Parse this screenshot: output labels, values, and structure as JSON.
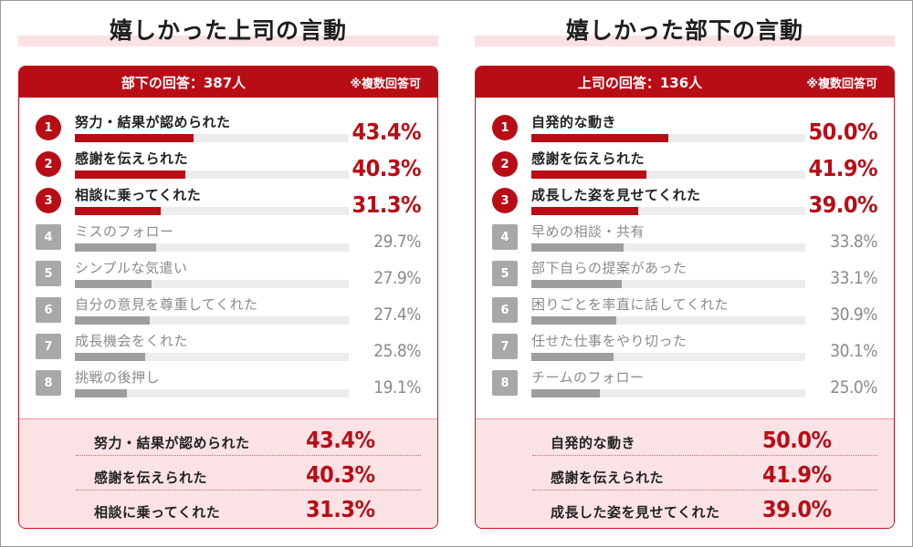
{
  "chart_data": [
    {
      "type": "bar",
      "orientation": "horizontal",
      "title": "嬉しかった上司の言動",
      "respondents": "部下の回答：387人",
      "multiple_answers": "※複数回答可",
      "xlim": [
        0,
        100
      ],
      "highlight_top": 3,
      "colors": {
        "top": "#b90d16",
        "other": "#9e9e9e",
        "track": "#ececec"
      },
      "items": [
        {
          "rank": "1",
          "label": "努力・結果が認められた",
          "value": 43.4,
          "display": "43.4%"
        },
        {
          "rank": "2",
          "label": "感謝を伝えられた",
          "value": 40.3,
          "display": "40.3%"
        },
        {
          "rank": "3",
          "label": "相談に乗ってくれた",
          "value": 31.3,
          "display": "31.3%"
        },
        {
          "rank": "4",
          "label": "ミスのフォロー",
          "value": 29.7,
          "display": "29.7%"
        },
        {
          "rank": "5",
          "label": "シンプルな気遣い",
          "value": 27.9,
          "display": "27.9%"
        },
        {
          "rank": "6",
          "label": "自分の意見を尊重してくれた",
          "value": 27.4,
          "display": "27.4%"
        },
        {
          "rank": "7",
          "label": "成長機会をくれた",
          "value": 25.8,
          "display": "25.8%"
        },
        {
          "rank": "8",
          "label": "挑戦の後押し",
          "value": 19.1,
          "display": "19.1%"
        }
      ]
    },
    {
      "type": "bar",
      "orientation": "horizontal",
      "title": "嬉しかった部下の言動",
      "respondents": "上司の回答：136人",
      "multiple_answers": "※複数回答可",
      "xlim": [
        0,
        100
      ],
      "highlight_top": 3,
      "colors": {
        "top": "#b90d16",
        "other": "#9e9e9e",
        "track": "#ececec"
      },
      "items": [
        {
          "rank": "1",
          "label": "自発的な動き",
          "value": 50.0,
          "display": "50.0%"
        },
        {
          "rank": "2",
          "label": "感謝を伝えられた",
          "value": 41.9,
          "display": "41.9%"
        },
        {
          "rank": "3",
          "label": "成長した姿を見せてくれた",
          "value": 39.0,
          "display": "39.0%"
        },
        {
          "rank": "4",
          "label": "早めの相談・共有",
          "value": 33.8,
          "display": "33.8%"
        },
        {
          "rank": "5",
          "label": "部下自らの提案があった",
          "value": 33.1,
          "display": "33.1%"
        },
        {
          "rank": "6",
          "label": "困りごとを率直に話してくれた",
          "value": 30.9,
          "display": "30.9%"
        },
        {
          "rank": "7",
          "label": "任せた仕事をやり切った",
          "value": 30.1,
          "display": "30.1%"
        },
        {
          "rank": "8",
          "label": "チームのフォロー",
          "value": 25.0,
          "display": "25.0%"
        }
      ]
    }
  ]
}
